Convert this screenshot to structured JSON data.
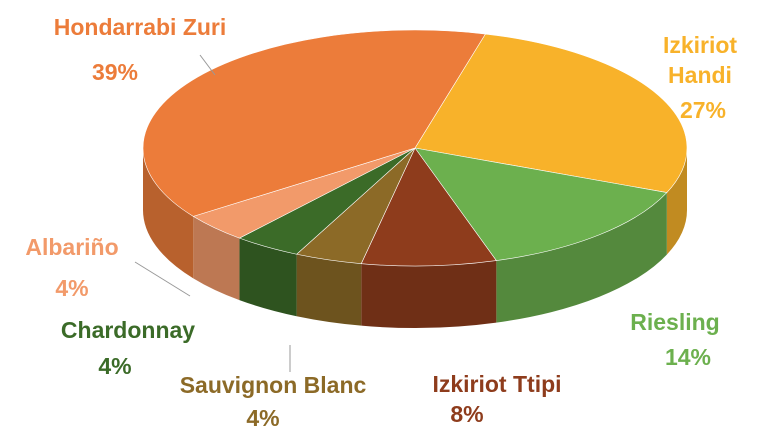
{
  "chart_data": {
    "type": "pie",
    "three_d": true,
    "categories": [
      "Izkiriot Handi",
      "Riesling",
      "Izkiriot Ttipi",
      "Sauvignon Blanc",
      "Chardonnay",
      "Albariño",
      "Hondarrabi Zuri"
    ],
    "values": [
      27,
      14,
      8,
      4,
      4,
      4,
      39
    ],
    "value_labels": [
      "27%",
      "14%",
      "8%",
      "4%",
      "4%",
      "4%",
      "39%"
    ],
    "colors": [
      "#f8b22a",
      "#6cb04e",
      "#8e3c1c",
      "#8c6a27",
      "#3b6b28",
      "#f29a6a",
      "#ec7c3a"
    ]
  }
}
